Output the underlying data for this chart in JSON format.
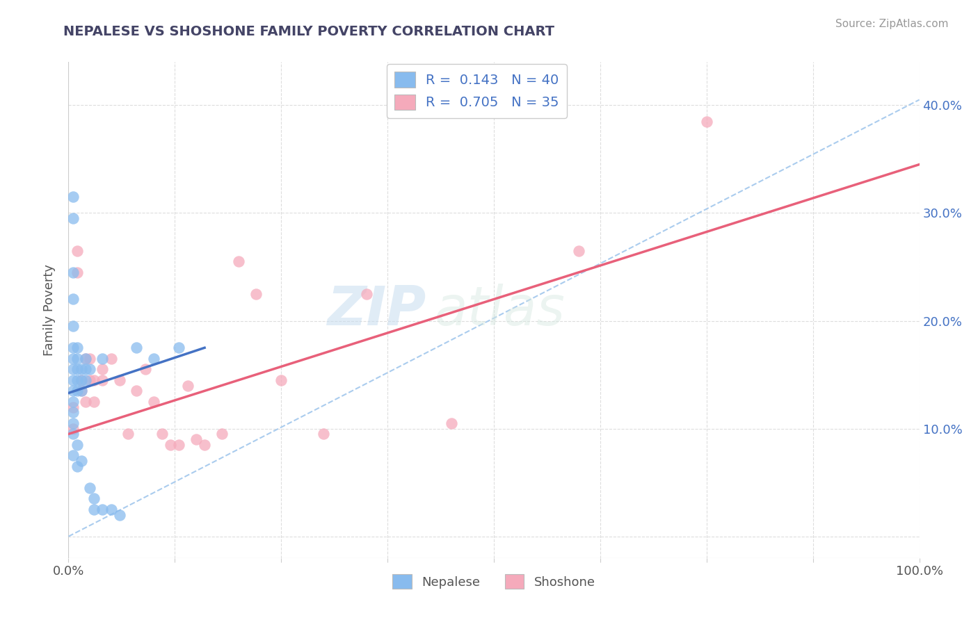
{
  "title": "NEPALESE VS SHOSHONE FAMILY POVERTY CORRELATION CHART",
  "source": "Source: ZipAtlas.com",
  "ylabel": "Family Poverty",
  "xlim": [
    0.0,
    1.0
  ],
  "ylim": [
    -0.02,
    0.44
  ],
  "nepalese_R": "0.143",
  "nepalese_N": "40",
  "shoshone_R": "0.705",
  "shoshone_N": "35",
  "watermark_zip": "ZIP",
  "watermark_atlas": "atlas",
  "nepalese_color": "#88BBEE",
  "shoshone_color": "#F5AABB",
  "nepalese_line_color": "#4472C4",
  "shoshone_line_color": "#E8607A",
  "dashed_line_color": "#AACCEE",
  "background_color": "#FFFFFF",
  "grid_color": "#DDDDDD",
  "tick_label_color": "#4472C4",
  "nepalese_points_x": [
    0.005,
    0.005,
    0.005,
    0.005,
    0.005,
    0.005,
    0.005,
    0.005,
    0.005,
    0.005,
    0.005,
    0.005,
    0.005,
    0.005,
    0.005,
    0.01,
    0.01,
    0.01,
    0.01,
    0.01,
    0.01,
    0.01,
    0.015,
    0.015,
    0.015,
    0.015,
    0.02,
    0.02,
    0.02,
    0.025,
    0.025,
    0.03,
    0.03,
    0.04,
    0.04,
    0.05,
    0.06,
    0.08,
    0.1,
    0.13
  ],
  "nepalese_points_y": [
    0.315,
    0.295,
    0.245,
    0.22,
    0.195,
    0.175,
    0.165,
    0.155,
    0.145,
    0.135,
    0.125,
    0.115,
    0.105,
    0.095,
    0.075,
    0.175,
    0.165,
    0.155,
    0.145,
    0.135,
    0.085,
    0.065,
    0.155,
    0.145,
    0.135,
    0.07,
    0.165,
    0.155,
    0.145,
    0.155,
    0.045,
    0.035,
    0.025,
    0.165,
    0.025,
    0.025,
    0.02,
    0.175,
    0.165,
    0.175
  ],
  "shoshone_points_x": [
    0.005,
    0.005,
    0.01,
    0.01,
    0.015,
    0.015,
    0.02,
    0.02,
    0.025,
    0.025,
    0.03,
    0.03,
    0.04,
    0.04,
    0.05,
    0.06,
    0.07,
    0.08,
    0.09,
    0.1,
    0.11,
    0.12,
    0.13,
    0.14,
    0.15,
    0.16,
    0.18,
    0.2,
    0.22,
    0.25,
    0.3,
    0.35,
    0.45,
    0.6,
    0.75
  ],
  "shoshone_points_y": [
    0.12,
    0.1,
    0.265,
    0.245,
    0.145,
    0.135,
    0.165,
    0.125,
    0.165,
    0.145,
    0.145,
    0.125,
    0.155,
    0.145,
    0.165,
    0.145,
    0.095,
    0.135,
    0.155,
    0.125,
    0.095,
    0.085,
    0.085,
    0.14,
    0.09,
    0.085,
    0.095,
    0.255,
    0.225,
    0.145,
    0.095,
    0.225,
    0.105,
    0.265,
    0.385
  ],
  "nepalese_line_x": [
    0.0,
    0.16
  ],
  "nepalese_line_y": [
    0.133,
    0.175
  ],
  "shoshone_line_x": [
    0.0,
    1.0
  ],
  "shoshone_line_y": [
    0.095,
    0.345
  ],
  "dashed_line_x": [
    0.0,
    1.0
  ],
  "dashed_line_y": [
    0.0,
    0.405
  ],
  "yticks": [
    0.0,
    0.1,
    0.2,
    0.3,
    0.4
  ],
  "ytick_labels_right": [
    "",
    "10.0%",
    "20.0%",
    "30.0%",
    "40.0%"
  ],
  "xticks": [
    0.0,
    0.125,
    0.25,
    0.375,
    0.5,
    0.625,
    0.75,
    0.875,
    1.0
  ],
  "xtick_labels": [
    "0.0%",
    "",
    "",
    "",
    "",
    "",
    "",
    "",
    "100.0%"
  ]
}
